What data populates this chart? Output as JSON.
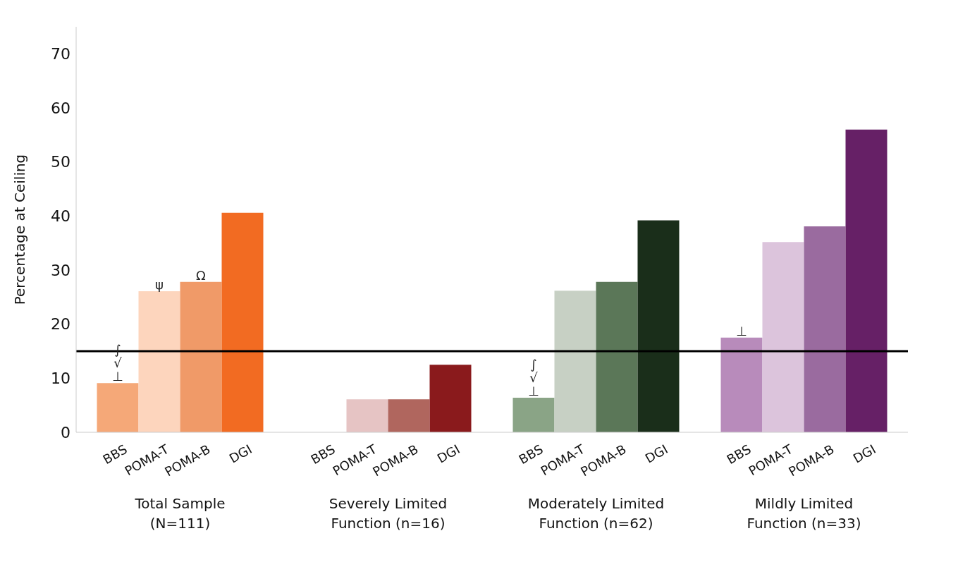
{
  "chart_data": {
    "type": "bar",
    "ylabel": "Percentage at Ceiling",
    "categories": [
      "Total Sample\n(N=111)",
      "Severely Limited\nFunction (n=16)",
      "Moderately Limited\nFunction (n=62)",
      "Mildly Limited\nFunction (n=33)"
    ],
    "series": [
      {
        "name": "BBS",
        "colors": [
          "#f5a878",
          "#e8c0c0",
          "#8aa486",
          "#b88bbb"
        ],
        "values": [
          9.1,
          0,
          6.4,
          17.5
        ]
      },
      {
        "name": "POMA-T",
        "colors": [
          "#fdd5bd",
          "#e6c4c4",
          "#c7d0c4",
          "#dcc4dc"
        ],
        "values": [
          26.1,
          6.1,
          26.2,
          35.2
        ]
      },
      {
        "name": "POMA-B",
        "colors": [
          "#f09a68",
          "#b0665e",
          "#5b7758",
          "#9a6b9f"
        ],
        "values": [
          27.8,
          6.1,
          27.8,
          38.1
        ]
      },
      {
        "name": "DGI",
        "colors": [
          "#f26b22",
          "#8a1a1c",
          "#1a2e1a",
          "#662066"
        ],
        "values": [
          40.6,
          12.5,
          39.2,
          56.0
        ]
      }
    ],
    "ylim": [
      0,
      75
    ],
    "yticks": [
      0,
      10,
      20,
      30,
      40,
      50,
      60,
      70
    ],
    "grid": false,
    "legend": false,
    "ref_lines": [
      {
        "axis": "y",
        "value": 15,
        "color": "#000000"
      }
    ],
    "annotations": [
      "⊥",
      "√",
      "∫",
      "ψ",
      "Ω",
      "⊥",
      "√",
      "∫",
      "⊥"
    ]
  }
}
